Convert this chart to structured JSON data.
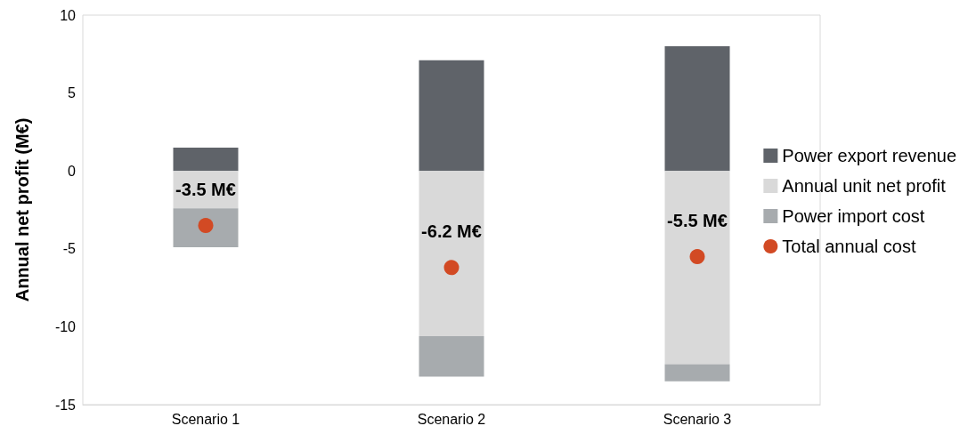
{
  "chart_data": {
    "type": "bar",
    "ylabel": "Annual net profit (M€)",
    "categories": [
      "Scenario 1",
      "Scenario 2",
      "Scenario 3"
    ],
    "stacked": true,
    "series": [
      {
        "name": "Power export revenue",
        "color": "#5f6369",
        "values": [
          1.5,
          7.1,
          8.0
        ]
      },
      {
        "name": "Annual unit net profit",
        "color": "#d9d9d9",
        "values": [
          -2.4,
          -10.6,
          -12.4
        ]
      },
      {
        "name": "Power import cost",
        "color": "#a7abae",
        "values": [
          -2.5,
          -2.6,
          -1.1
        ]
      },
      {
        "name": "Total annual cost",
        "type": "scatter",
        "color": "#d24a24",
        "x": [
          "Scenario 1",
          "Scenario 2",
          "Scenario 3"
        ],
        "values": [
          -3.5,
          -6.2,
          -5.5
        ],
        "value_labels": [
          "-3.5 M€",
          "-6.2 M€",
          "-5.5 M€"
        ]
      }
    ],
    "ylim": [
      -15,
      10
    ],
    "yticks": [
      -15,
      -10,
      -5,
      0,
      5,
      10
    ],
    "grid": false,
    "legend": "right",
    "marker": "circle"
  }
}
